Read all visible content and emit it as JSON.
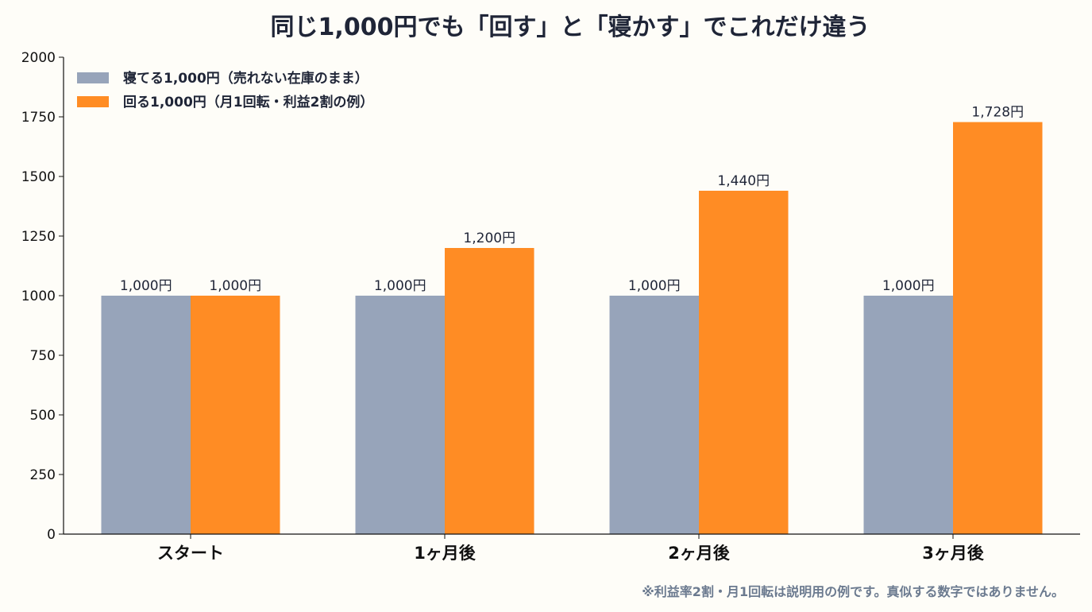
{
  "chart_data": {
    "type": "bar",
    "title": "同じ1,000円でも「回す」と「寝かす」でこれだけ違う",
    "xlabel": "",
    "ylabel": "",
    "categories": [
      "スタート",
      "1ヶ月後",
      "2ヶ月後",
      "3ヶ月後"
    ],
    "series": [
      {
        "name": "寝てる1,000円（売れない在庫のまま）",
        "values": [
          1000,
          1000,
          1000,
          1000
        ],
        "labels": [
          "1,000円",
          "1,000円",
          "1,000円",
          "1,000円"
        ],
        "color": "#97A4BA"
      },
      {
        "name": "回る1,000円（月1回転・利益2割の例）",
        "values": [
          1000,
          1200,
          1440,
          1728
        ],
        "labels": [
          "1,000円",
          "1,200円",
          "1,440円",
          "1,728円"
        ],
        "color": "#FF8C24"
      }
    ],
    "ylim": [
      0,
      2000
    ],
    "yticks": [
      0,
      250,
      500,
      750,
      1000,
      1250,
      1500,
      1750,
      2000
    ],
    "grid": false,
    "legend_position": "top-left",
    "note": "※利益率2割・月1回転は説明用の例です。真似する数字ではありません。"
  }
}
